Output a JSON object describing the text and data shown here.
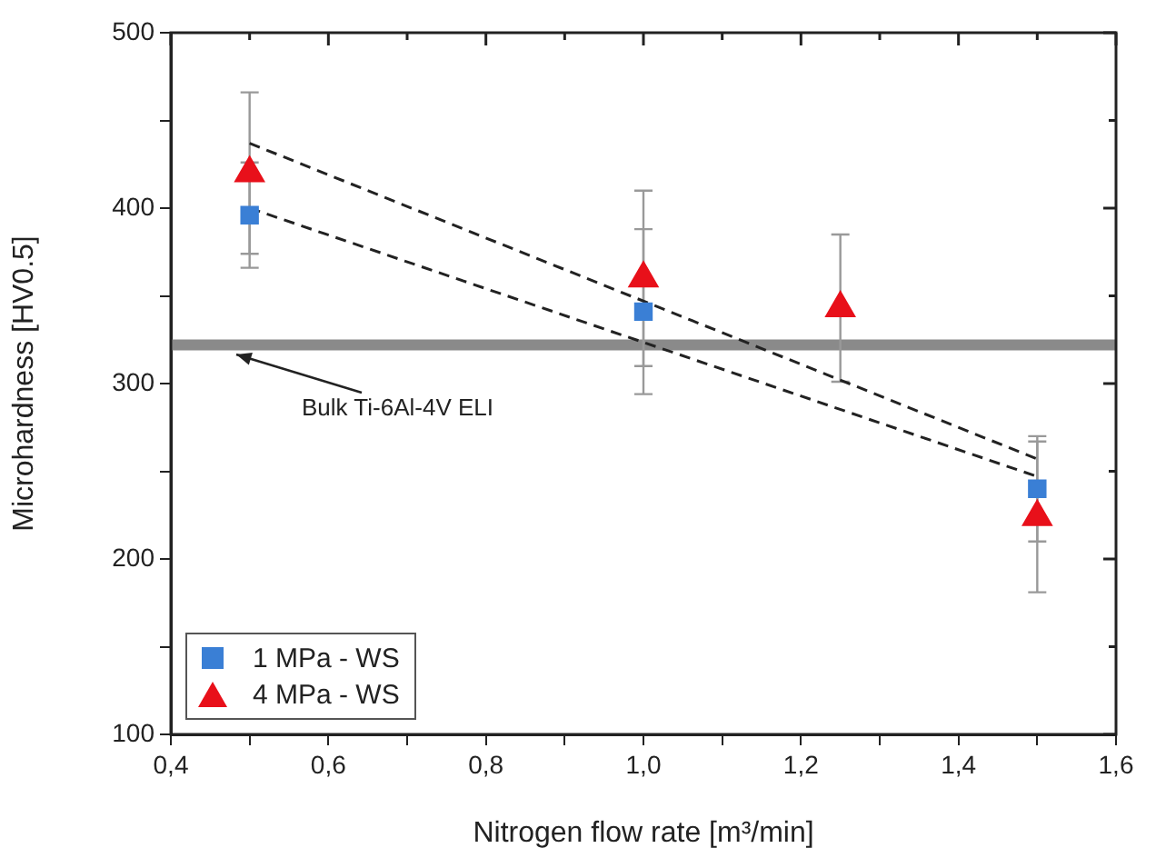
{
  "chart_data": {
    "type": "scatter",
    "xlabel": "Nitrogen flow rate [m³/min]",
    "ylabel": "Microhardness [HV0.5]",
    "xlim": [
      0.4,
      1.6
    ],
    "ylim": [
      100,
      500
    ],
    "xticks": [
      {
        "value": 0.4,
        "label": "0,4"
      },
      {
        "value": 0.5,
        "label": null
      },
      {
        "value": 0.6,
        "label": "0,6"
      },
      {
        "value": 0.7,
        "label": null
      },
      {
        "value": 0.8,
        "label": "0,8"
      },
      {
        "value": 0.9,
        "label": null
      },
      {
        "value": 1.0,
        "label": "1,0"
      },
      {
        "value": 1.1,
        "label": null
      },
      {
        "value": 1.2,
        "label": "1,2"
      },
      {
        "value": 1.3,
        "label": null
      },
      {
        "value": 1.4,
        "label": "1,4"
      },
      {
        "value": 1.5,
        "label": null
      },
      {
        "value": 1.6,
        "label": "1,6"
      }
    ],
    "yticks": [
      100,
      {
        "value": 150,
        "label": null
      },
      200,
      {
        "value": 250,
        "label": null
      },
      300,
      {
        "value": 350,
        "label": null
      },
      400,
      {
        "value": 450,
        "label": null
      },
      500
    ],
    "grid": false,
    "legend": "bottom left",
    "series": [
      {
        "name": "1 MPa - WS",
        "color": "#3a7fd5",
        "marker": "square",
        "x": [
          0.5,
          1.0,
          1.5
        ],
        "values": [
          396,
          341,
          240
        ],
        "errors": [
          30,
          47,
          30
        ]
      },
      {
        "name": "4 MPa - WS",
        "color": "#e8101a",
        "marker": "triangle",
        "x": [
          0.5,
          1.0,
          1.25,
          1.5
        ],
        "values": [
          420,
          360,
          343,
          224
        ],
        "errors": [
          46,
          50,
          42,
          43
        ]
      },
      {
        "type": "line",
        "color": "#222222",
        "marker": "none",
        "line_style": "dashed",
        "x": [
          0.5,
          1.5
        ],
        "values": [
          400,
          247
        ]
      },
      {
        "type": "line",
        "color": "#222222",
        "marker": "none",
        "line_style": "dashed",
        "x": [
          0.5,
          1.5
        ],
        "values": [
          437,
          257
        ]
      }
    ],
    "ref_lines": [
      {
        "axis": "y",
        "value": 322,
        "label": "Bulk Ti-6Al-4V ELI",
        "color": "#8a8a8a"
      }
    ]
  }
}
